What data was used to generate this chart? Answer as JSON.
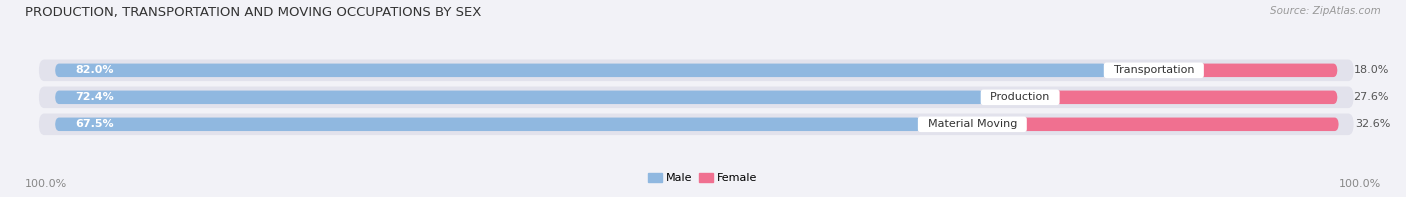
{
  "title": "PRODUCTION, TRANSPORTATION AND MOVING OCCUPATIONS BY SEX",
  "source_text": "Source: ZipAtlas.com",
  "categories": [
    "Transportation",
    "Production",
    "Material Moving"
  ],
  "male_values": [
    82.0,
    72.4,
    67.5
  ],
  "female_values": [
    18.0,
    27.6,
    32.6
  ],
  "male_color": "#90b8e0",
  "female_color": "#f07090",
  "male_label": "Male",
  "female_label": "Female",
  "bg_color": "#f2f2f7",
  "row_bg_color": "#e2e2ec",
  "title_fontsize": 9.5,
  "bar_label_fontsize": 8.0,
  "cat_label_fontsize": 8.0,
  "tick_fontsize": 8.0,
  "source_fontsize": 7.5,
  "left_tick": "100.0%",
  "right_tick": "100.0%"
}
